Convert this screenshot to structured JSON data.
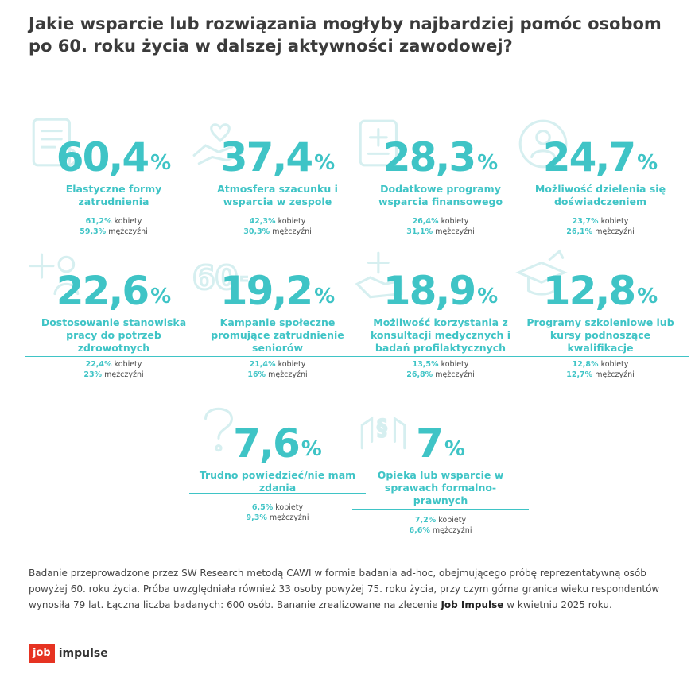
{
  "title": "Jakie wsparcie lub rozwiązania mogłyby najbardziej pomóc osobom po 60. roku życia w dalszej aktywności zawodowej?",
  "chart_data": {
    "type": "table",
    "items": [
      {
        "value": "60,4",
        "unit": "%",
        "label": "Elastyczne formy zatrudnienia",
        "women": "61,2%",
        "women_label": "kobiety",
        "men": "59,3%",
        "men_label": "mężczyźni",
        "icon": "form-checklist-icon"
      },
      {
        "value": "37,4",
        "unit": "%",
        "label": "Atmosfera szacunku i wsparcia w zespole",
        "women": "42,3%",
        "women_label": "kobiety",
        "men": "30,3%",
        "men_label": "mężczyźni",
        "icon": "caring-hands-icon"
      },
      {
        "value": "28,3",
        "unit": "%",
        "label": "Dodatkowe programy wsparcia finansowego",
        "women": "26,4%",
        "women_label": "kobiety",
        "men": "31,1%",
        "men_label": "mężczyźni",
        "icon": "medical-card-icon"
      },
      {
        "value": "24,7",
        "unit": "%",
        "label": "Możliwość dzielenia się doświadczeniem",
        "women": "23,7%",
        "women_label": "kobiety",
        "men": "26,1%",
        "men_label": "mężczyźni",
        "icon": "person-sharing-icon"
      },
      {
        "value": "22,6",
        "unit": "%",
        "label": "Dostosowanie stanowiska pracy do potrzeb zdrowotnych",
        "women": "22,4%",
        "women_label": "kobiety",
        "men": "23%",
        "men_label": "mężczyźni",
        "icon": "health-person-icon"
      },
      {
        "value": "19,2",
        "unit": "%",
        "label": "Kampanie społeczne promujące zatrudnienie seniorów",
        "women": "21,4%",
        "women_label": "kobiety",
        "men": "16%",
        "men_label": "mężczyźni",
        "icon": "sixty-plus-icon"
      },
      {
        "value": "18,9",
        "unit": "%",
        "label": "Możliwość korzystania z konsultacji medycznych i badań profilaktycznych",
        "women": "13,5%",
        "women_label": "kobiety",
        "men": "26,8%",
        "men_label": "mężczyźni",
        "icon": "medical-hand-icon"
      },
      {
        "value": "12,8",
        "unit": "%",
        "label": "Programy szkoleniowe lub kursy podnoszące kwalifikacje",
        "women": "12,8%",
        "women_label": "kobiety",
        "men": "12,7%",
        "men_label": "mężczyźni",
        "icon": "graduation-growth-icon"
      },
      {
        "value": "7,6",
        "unit": "%",
        "label": "Trudno powiedzieć/nie mam zdania",
        "women": "6,5%",
        "women_label": "kobiety",
        "men": "9,3%",
        "men_label": "mężczyźni",
        "icon": "question-mark-icon"
      },
      {
        "value": "7",
        "unit": "%",
        "label": "Opieka lub wsparcie w sprawach formalno-prawnych",
        "women": "7,2%",
        "women_label": "kobiety",
        "men": "6,6%",
        "men_label": "mężczyźni",
        "icon": "legal-hands-icon"
      }
    ]
  },
  "footnote": {
    "text": "Badanie przeprowadzone przez SW Research metodą CAWI w formie badania ad-hoc, obejmującego próbę reprezentatywną osób powyżej 60. roku życia. Próba uwzględniała również 33 osoby powyżej 75. roku życia, przy czym górna granica wieku respondentów wynosiła 79 lat. Łączna liczba badanych: 600 osób. Bananie zrealizowane na zlecenie ",
    "client": "Job Impulse",
    "tail": " w kwietniu 2025 roku."
  },
  "logo": {
    "box": "job",
    "word": "impulse"
  },
  "colors": {
    "accent": "#3fc4c6",
    "icon_faint": "#d6eff0",
    "logo_red": "#e63322"
  }
}
